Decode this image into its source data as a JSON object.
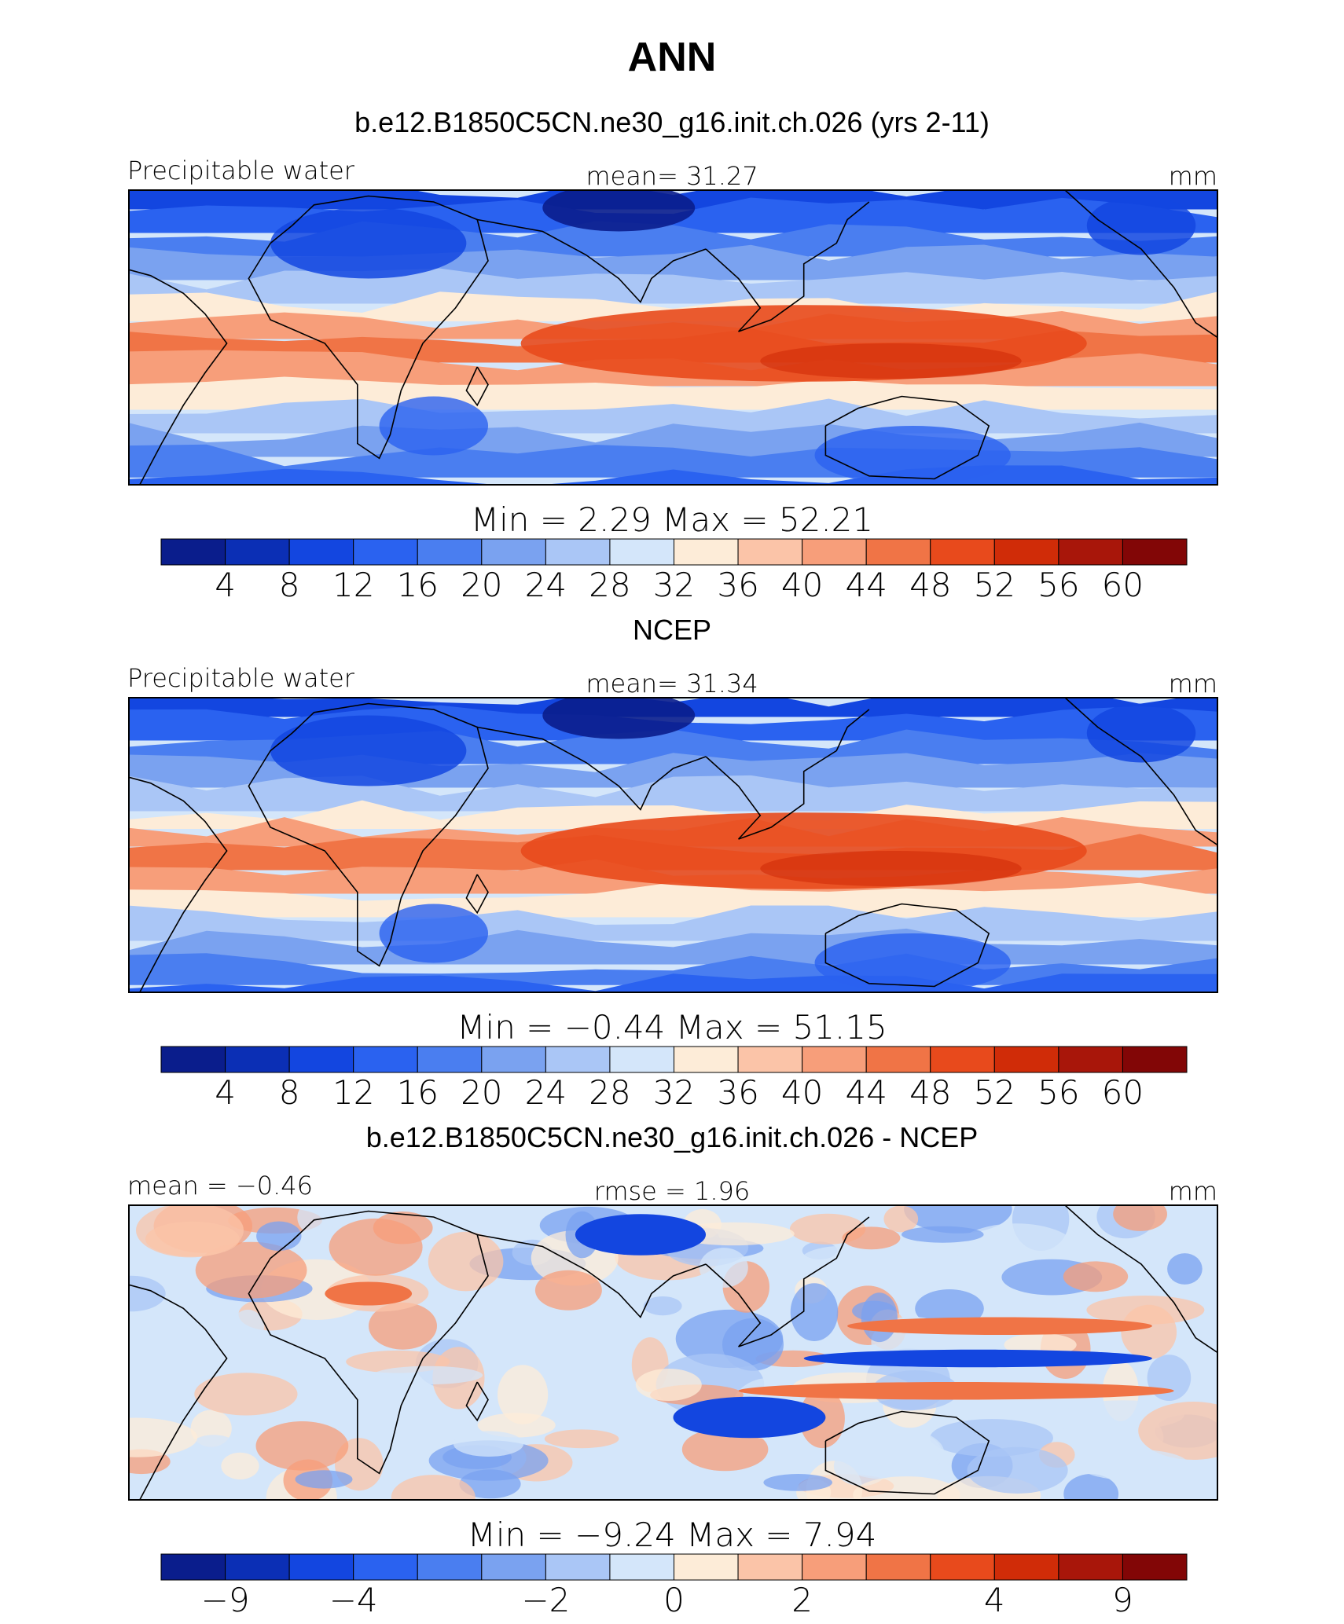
{
  "figure": {
    "title": "ANN"
  },
  "chart_data": [
    {
      "type": "heatmap",
      "title": "b.e12.B1850C5CN.ne30_g16.init.ch.026 (yrs 2-11)",
      "left_label": "Precipitable water",
      "center_label": "mean=   31.27",
      "right_label": "mm",
      "mean": 31.27,
      "min_max_label": "Min  =     2.29  Max  =    52.21",
      "min": 2.29,
      "max": 52.21,
      "colorbar": {
        "colors": [
          "#0a1d8c",
          "#0b2fb5",
          "#1346e0",
          "#2a62f0",
          "#4a7ef0",
          "#7aa2f0",
          "#aac6f6",
          "#d4e6fa",
          "#fdecd8",
          "#fbc4a8",
          "#f79e7a",
          "#f07446",
          "#e84a1c",
          "#d02c08",
          "#a8160a",
          "#820606"
        ],
        "tick_labels": [
          "4",
          "8",
          "12",
          "16",
          "20",
          "24",
          "28",
          "32",
          "36",
          "40",
          "44",
          "48",
          "52",
          "56",
          "60"
        ]
      },
      "base_level": 7,
      "anomaly": false,
      "seed": 11
    },
    {
      "type": "heatmap",
      "title": "NCEP",
      "left_label": "Precipitable water",
      "center_label": "mean=   31.34",
      "right_label": "mm",
      "mean": 31.34,
      "min_max_label": "Min  =   −0.44  Max  =    51.15",
      "min": -0.44,
      "max": 51.15,
      "colorbar": {
        "colors": [
          "#0a1d8c",
          "#0b2fb5",
          "#1346e0",
          "#2a62f0",
          "#4a7ef0",
          "#7aa2f0",
          "#aac6f6",
          "#d4e6fa",
          "#fdecd8",
          "#fbc4a8",
          "#f79e7a",
          "#f07446",
          "#e84a1c",
          "#d02c08",
          "#a8160a",
          "#820606"
        ],
        "tick_labels": [
          "4",
          "8",
          "12",
          "16",
          "20",
          "24",
          "28",
          "32",
          "36",
          "40",
          "44",
          "48",
          "52",
          "56",
          "60"
        ]
      },
      "base_level": 7,
      "anomaly": false,
      "seed": 23
    },
    {
      "type": "heatmap",
      "title": "b.e12.B1850C5CN.ne30_g16.init.ch.026 - NCEP",
      "left_label": "mean  =   −0.46",
      "center_label": "rmse  =     1.96",
      "right_label": "mm",
      "mean": -0.46,
      "rmse": 1.96,
      "min_max_label": "Min  =   −9.24  Max  =     7.94",
      "min": -9.24,
      "max": 7.94,
      "colorbar": {
        "colors": [
          "#0a1d8c",
          "#0b2fb5",
          "#1346e0",
          "#2a62f0",
          "#4a7ef0",
          "#7aa2f0",
          "#aac6f6",
          "#d4e6fa",
          "#fdecd8",
          "#fbc4a8",
          "#f79e7a",
          "#f07446",
          "#e84a1c",
          "#d02c08",
          "#a8160a",
          "#820606"
        ],
        "tick_labels": [
          "−9",
          "−4",
          "−2",
          "0",
          "2",
          "4",
          "9"
        ]
      },
      "base_level": 7,
      "anomaly": true,
      "seed": 37
    }
  ]
}
